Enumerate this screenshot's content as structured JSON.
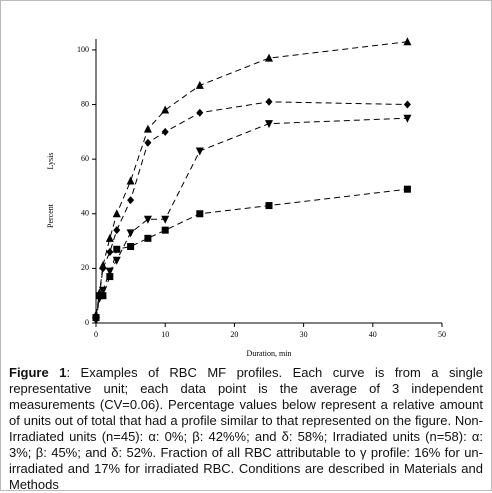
{
  "chart_data": {
    "type": "line",
    "x_label": "Duration, min",
    "y_label": [
      "Percent",
      "Lysis"
    ],
    "xlim": [
      0,
      50
    ],
    "xticks": [
      0,
      10,
      20,
      30,
      40,
      50
    ],
    "ylim": [
      0,
      104
    ],
    "yticks": [
      0,
      20,
      40,
      60,
      80,
      100
    ],
    "x": [
      0,
      0.5,
      1,
      2,
      3,
      5,
      7.5,
      10,
      15,
      25,
      45
    ],
    "series": [
      {
        "color": "#000000",
        "marker": "triangle-up",
        "values": [
          3,
          11,
          21,
          31,
          40,
          52,
          71,
          78,
          87,
          97,
          103
        ]
      },
      {
        "color": "#000000",
        "marker": "diamond",
        "values": [
          2,
          10,
          20,
          26,
          34,
          45,
          66,
          70,
          77,
          81,
          80
        ]
      },
      {
        "color": "#000000",
        "marker": "triangle-down",
        "values": [
          1,
          9,
          12,
          19,
          23,
          33,
          38,
          38,
          63,
          73,
          75
        ]
      },
      {
        "color": "#000000",
        "marker": "square",
        "values": [
          2,
          10,
          10,
          17,
          27,
          28,
          31,
          34,
          40,
          43,
          49
        ]
      }
    ]
  },
  "caption": {
    "label": "Figure 1",
    "text": ": Examples of RBC MF profiles. Each curve is from a single representative unit; each data point is the average of 3 independent measurements (CV=0.06). Percentage values below represent a relative amount of units out of total that had a profile similar to that represented on the figure. Non-Irradiated units (n=45): α: 0%; β: 42%%; and δ: 58%; Irradiated units (n=58): α: 3%; β: 45%; and δ: 52%. Fraction of all RBC attributable to γ profile: 16% for un-irradiated and 17% for irradiated RBC. Conditions are described in Materials and Methods"
  }
}
